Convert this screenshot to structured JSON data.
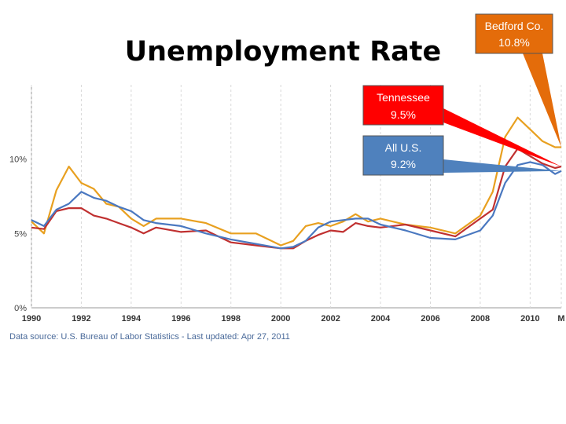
{
  "slide": {
    "title": "Unemployment Rate"
  },
  "chart_data": {
    "type": "line",
    "x_range": [
      1990,
      2011.25
    ],
    "ylim": [
      0,
      15
    ],
    "y_ticks": [
      "0%",
      "5%",
      "10%"
    ],
    "y_tick_values": [
      0,
      5,
      10
    ],
    "x_ticks": [
      "1990",
      "1992",
      "1994",
      "1996",
      "1998",
      "2000",
      "2002",
      "2004",
      "2006",
      "2008",
      "2010",
      "M"
    ],
    "x_tick_values": [
      1990,
      1992,
      1994,
      1996,
      1998,
      2000,
      2002,
      2004,
      2006,
      2008,
      2010,
      2011.25
    ],
    "source": "Data source: U.S. Bureau of Labor Statistics - Last updated: Apr 27, 2011",
    "series": [
      {
        "key": "us",
        "color": "#4a78c0",
        "x": [
          1990,
          1990.5,
          1991,
          1991.5,
          1992,
          1992.5,
          1993,
          1993.5,
          1994,
          1994.5,
          1995,
          1996,
          1997,
          1998,
          1999,
          2000,
          2000.5,
          2001,
          2001.5,
          2002,
          2002.5,
          2003,
          2003.5,
          2004,
          2005,
          2006,
          2007,
          2008,
          2008.5,
          2009,
          2009.5,
          2010,
          2010.5,
          2011,
          2011.25
        ],
        "values": [
          5.9,
          5.5,
          6.6,
          7.0,
          7.8,
          7.4,
          7.2,
          6.8,
          6.5,
          5.9,
          5.7,
          5.5,
          5.0,
          4.6,
          4.3,
          4.0,
          4.1,
          4.5,
          5.4,
          5.8,
          5.9,
          6.0,
          6.0,
          5.6,
          5.2,
          4.7,
          4.6,
          5.2,
          6.2,
          8.4,
          9.6,
          9.8,
          9.6,
          9.0,
          9.2
        ]
      },
      {
        "key": "tn",
        "color": "#c03030",
        "x": [
          1990,
          1990.5,
          1991,
          1991.5,
          1992,
          1992.5,
          1993,
          1993.5,
          1994,
          1994.5,
          1995,
          1996,
          1997,
          1998,
          1999,
          2000,
          2000.5,
          2001,
          2001.5,
          2002,
          2002.5,
          2003,
          2003.5,
          2004,
          2005,
          2006,
          2007,
          2008,
          2008.5,
          2009,
          2009.5,
          2010,
          2010.5,
          2011,
          2011.25
        ],
        "values": [
          5.4,
          5.3,
          6.5,
          6.7,
          6.7,
          6.2,
          6.0,
          5.7,
          5.4,
          5.0,
          5.4,
          5.1,
          5.2,
          4.4,
          4.2,
          4.0,
          4.0,
          4.5,
          4.9,
          5.2,
          5.1,
          5.7,
          5.5,
          5.4,
          5.6,
          5.2,
          4.8,
          6.0,
          6.6,
          9.5,
          10.7,
          10.2,
          9.7,
          9.4,
          9.5
        ]
      },
      {
        "key": "bedford",
        "color": "#e8a020",
        "x": [
          1990,
          1990.5,
          1991,
          1991.5,
          1992,
          1992.5,
          1993,
          1993.5,
          1994,
          1994.5,
          1995,
          1996,
          1997,
          1998,
          1999,
          2000,
          2000.5,
          2001,
          2001.5,
          2002,
          2002.5,
          2003,
          2003.5,
          2004,
          2005,
          2006,
          2007,
          2008,
          2008.5,
          2009,
          2009.5,
          2010,
          2010.5,
          2011,
          2011.25
        ],
        "values": [
          5.8,
          5.0,
          7.9,
          9.5,
          8.4,
          8.0,
          7.0,
          6.8,
          6.0,
          5.5,
          6.0,
          6.0,
          5.7,
          5.0,
          5.0,
          4.2,
          4.5,
          5.5,
          5.7,
          5.5,
          5.8,
          6.3,
          5.8,
          6.0,
          5.6,
          5.4,
          5.0,
          6.2,
          7.8,
          11.5,
          12.8,
          12.0,
          11.2,
          10.8,
          10.8
        ]
      }
    ]
  },
  "callouts": {
    "bedford": {
      "line1": "Bedford Co.",
      "line2": "10.8%",
      "fill": "#e46c0a",
      "text_color": "#ffffff"
    },
    "tennessee": {
      "line1": "Tennessee",
      "line2": "9.5%",
      "fill": "#ff0000",
      "text_color": "#ffffff"
    },
    "us": {
      "line1": "All U.S.",
      "line2": "9.2%",
      "fill": "#4f81bd",
      "text_color": "#ffffff"
    }
  }
}
